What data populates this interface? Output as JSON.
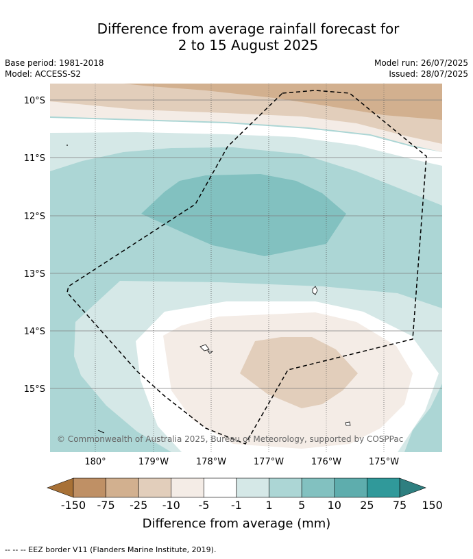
{
  "title_line1": "Difference from average rainfall forecast for",
  "title_line2": "2 to 15 August 2025",
  "meta": {
    "base_period": "Base period: 1981-2018",
    "model": "Model: ACCESS-S2",
    "model_run": "Model run: 26/07/2025",
    "issued": "Issued: 28/07/2025"
  },
  "axes": {
    "lat_labels": [
      "10°S",
      "11°S",
      "12°S",
      "13°S",
      "14°S",
      "15°S"
    ],
    "lon_labels": [
      "180°",
      "179°W",
      "178°W",
      "177°W",
      "176°W",
      "175°W"
    ]
  },
  "copyright": "© Commonwealth of Australia 2025, Bureau of Meteorology, supported by COSPPac",
  "colorbar": {
    "tick_labels": [
      "-150",
      "-75",
      "-25",
      "-10",
      "-5",
      "-1",
      "1",
      "5",
      "10",
      "25",
      "75",
      "150"
    ],
    "colors": [
      "#a87136",
      "#bf9065",
      "#d2b08f",
      "#e2cebb",
      "#f4ece6",
      "#ffffff",
      "#d5e8e7",
      "#acd6d5",
      "#82c1c0",
      "#5eadad",
      "#30999a",
      "#2e7f80"
    ],
    "label": "Difference from average (mm)"
  },
  "footnote": "--  --  -- EEZ border V11 (Flanders Marine Institute, 2019)."
}
